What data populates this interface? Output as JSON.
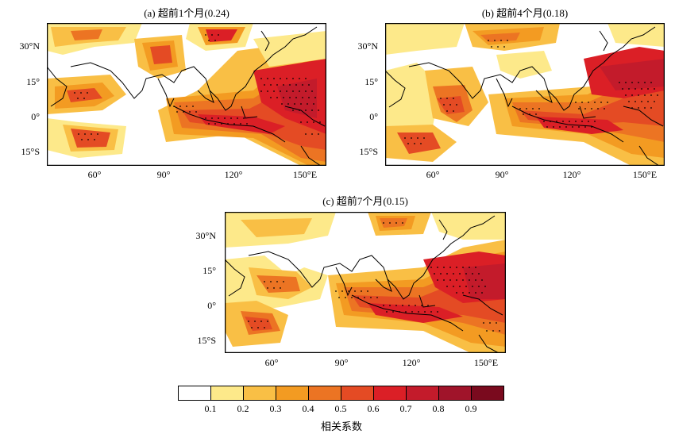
{
  "panels": [
    {
      "id": "a",
      "title": "(a) 超前1个月(0.24)"
    },
    {
      "id": "b",
      "title": "(b) 超前4个月(0.18)"
    },
    {
      "id": "c",
      "title": "(c) 超前7个月(0.15)"
    }
  ],
  "axes": {
    "lat_ticks": [
      "30°N",
      "15°",
      "0°",
      "15°S"
    ],
    "lon_ticks": [
      "60°",
      "90°",
      "120°",
      "150°E"
    ]
  },
  "colorbar": {
    "title": "相关系数",
    "tick_labels": [
      "0.1",
      "0.2",
      "0.3",
      "0.4",
      "0.5",
      "0.6",
      "0.7",
      "0.8",
      "0.9"
    ],
    "colors": [
      "#ffffff",
      "#fde98a",
      "#f9bf45",
      "#f39b22",
      "#ec7423",
      "#e44b24",
      "#db1f26",
      "#c31b2b",
      "#a0142a",
      "#7a0a1e"
    ]
  },
  "colors": {
    "land_outline": "#000000",
    "stipple": "#000000"
  }
}
